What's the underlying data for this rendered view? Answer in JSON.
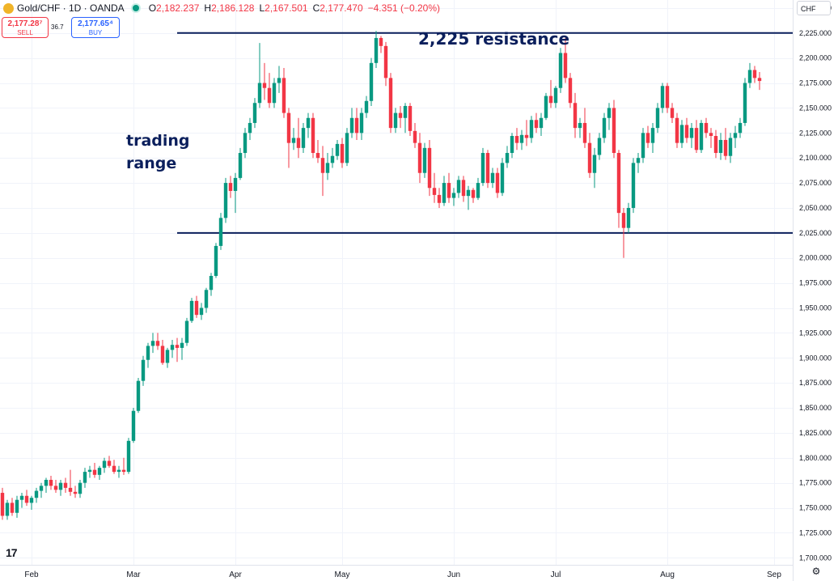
{
  "header": {
    "title": "Gold/CHF · 1D · OANDA",
    "o_label": "O",
    "o_value": "2,182.237",
    "h_label": "H",
    "h_value": "2,186.128",
    "l_label": "L",
    "l_value": "2,167.501",
    "c_label": "C",
    "c_value": "2,177.470",
    "change": "−4.351 (−0.20%)"
  },
  "trade": {
    "sell_price": "2,177.28⁷",
    "sell_label": "SELL",
    "spread": "36.7",
    "buy_price": "2,177.65⁴",
    "buy_label": "BUY"
  },
  "currency": "CHF",
  "annotations": {
    "resistance": "2,225 resistance",
    "range_line1": "trading",
    "range_line2": "range"
  },
  "logo": "17",
  "colors": {
    "up": "#089981",
    "down": "#f23645",
    "annotation": "#0b1f5c",
    "grid": "#f0f3fa"
  },
  "chart_data": {
    "type": "candlestick",
    "ylim": [
      1693,
      2258
    ],
    "yticks": [
      2250,
      2225,
      2200,
      2175,
      2150,
      2125,
      2100,
      2075,
      2050,
      2025,
      2000,
      1975,
      1950,
      1925,
      1900,
      1875,
      1850,
      1825,
      1800,
      1775,
      1750,
      1725,
      1700
    ],
    "ytick_labels": [
      "2,250.000",
      "2,225.000",
      "2,200.000",
      "2,175.000",
      "2,150.000",
      "2,125.000",
      "2,100.000",
      "2,075.000",
      "2,050.000",
      "2,025.000",
      "2,000.000",
      "1,975.000",
      "1,950.000",
      "1,925.000",
      "1,900.000",
      "1,875.000",
      "1,850.000",
      "1,825.000",
      "1,800.000",
      "1,775.000",
      "1,750.000",
      "1,725.000",
      "1,700.000"
    ],
    "months": [
      {
        "label": "Feb",
        "index": 6
      },
      {
        "label": "Mar",
        "index": 27
      },
      {
        "label": "Apr",
        "index": 48
      },
      {
        "label": "May",
        "index": 70
      },
      {
        "label": "Jun",
        "index": 93
      },
      {
        "label": "Jul",
        "index": 114
      },
      {
        "label": "Aug",
        "index": 137
      },
      {
        "label": "Sep",
        "index": 159
      }
    ],
    "hlines": [
      {
        "value": 2225,
        "start_index": 36
      },
      {
        "value": 2025,
        "start_index": 36
      }
    ],
    "candles": [
      [
        1765,
        1770,
        1738,
        1742
      ],
      [
        1742,
        1758,
        1738,
        1755
      ],
      [
        1755,
        1760,
        1742,
        1745
      ],
      [
        1745,
        1762,
        1740,
        1758
      ],
      [
        1758,
        1765,
        1750,
        1762
      ],
      [
        1762,
        1768,
        1752,
        1755
      ],
      [
        1755,
        1762,
        1748,
        1760
      ],
      [
        1760,
        1770,
        1755,
        1767
      ],
      [
        1767,
        1775,
        1760,
        1772
      ],
      [
        1772,
        1780,
        1765,
        1778
      ],
      [
        1778,
        1782,
        1768,
        1772
      ],
      [
        1772,
        1778,
        1765,
        1768
      ],
      [
        1768,
        1778,
        1762,
        1775
      ],
      [
        1775,
        1780,
        1765,
        1770
      ],
      [
        1770,
        1788,
        1762,
        1766
      ],
      [
        1766,
        1772,
        1760,
        1764
      ],
      [
        1764,
        1778,
        1760,
        1775
      ],
      [
        1775,
        1790,
        1770,
        1786
      ],
      [
        1786,
        1792,
        1780,
        1788
      ],
      [
        1788,
        1795,
        1780,
        1783
      ],
      [
        1783,
        1792,
        1778,
        1790
      ],
      [
        1790,
        1800,
        1785,
        1797
      ],
      [
        1797,
        1802,
        1790,
        1792
      ],
      [
        1792,
        1798,
        1784,
        1786
      ],
      [
        1786,
        1792,
        1780,
        1788
      ],
      [
        1788,
        1800,
        1783,
        1786
      ],
      [
        1786,
        1820,
        1784,
        1817
      ],
      [
        1817,
        1850,
        1815,
        1847
      ],
      [
        1847,
        1880,
        1845,
        1877
      ],
      [
        1877,
        1902,
        1872,
        1898
      ],
      [
        1898,
        1915,
        1890,
        1912
      ],
      [
        1912,
        1925,
        1905,
        1917
      ],
      [
        1917,
        1925,
        1908,
        1912
      ],
      [
        1912,
        1918,
        1893,
        1895
      ],
      [
        1895,
        1910,
        1890,
        1908
      ],
      [
        1908,
        1918,
        1900,
        1913
      ],
      [
        1913,
        1920,
        1896,
        1910
      ],
      [
        1910,
        1920,
        1898,
        1915
      ],
      [
        1915,
        1940,
        1912,
        1937
      ],
      [
        1937,
        1960,
        1935,
        1957
      ],
      [
        1957,
        1962,
        1940,
        1943
      ],
      [
        1943,
        1955,
        1938,
        1950
      ],
      [
        1950,
        1970,
        1945,
        1968
      ],
      [
        1968,
        1985,
        1962,
        1982
      ],
      [
        1982,
        2015,
        1980,
        2012
      ],
      [
        2012,
        2045,
        2008,
        2040
      ],
      [
        2040,
        2080,
        2035,
        2075
      ],
      [
        2075,
        2082,
        2060,
        2067
      ],
      [
        2067,
        2085,
        2045,
        2080
      ],
      [
        2080,
        2110,
        2078,
        2105
      ],
      [
        2105,
        2130,
        2100,
        2125
      ],
      [
        2125,
        2140,
        2118,
        2135
      ],
      [
        2135,
        2160,
        2130,
        2155
      ],
      [
        2155,
        2215,
        2150,
        2175
      ],
      [
        2175,
        2195,
        2158,
        2170
      ],
      [
        2170,
        2185,
        2150,
        2155
      ],
      [
        2155,
        2180,
        2150,
        2175
      ],
      [
        2175,
        2192,
        2165,
        2180
      ],
      [
        2180,
        2190,
        2140,
        2145
      ],
      [
        2145,
        2150,
        2090,
        2115
      ],
      [
        2115,
        2130,
        2108,
        2120
      ],
      [
        2120,
        2140,
        2100,
        2110
      ],
      [
        2110,
        2135,
        2105,
        2130
      ],
      [
        2130,
        2145,
        2120,
        2140
      ],
      [
        2140,
        2145,
        2100,
        2105
      ],
      [
        2105,
        2118,
        2095,
        2100
      ],
      [
        2100,
        2112,
        2062,
        2085
      ],
      [
        2085,
        2105,
        2078,
        2095
      ],
      [
        2095,
        2110,
        2090,
        2102
      ],
      [
        2102,
        2118,
        2098,
        2114
      ],
      [
        2114,
        2120,
        2090,
        2095
      ],
      [
        2095,
        2130,
        2092,
        2125
      ],
      [
        2125,
        2150,
        2120,
        2140
      ],
      [
        2140,
        2150,
        2118,
        2125
      ],
      [
        2125,
        2150,
        2118,
        2145
      ],
      [
        2145,
        2162,
        2140,
        2157
      ],
      [
        2157,
        2200,
        2152,
        2195
      ],
      [
        2195,
        2227,
        2190,
        2220
      ],
      [
        2220,
        2222,
        2205,
        2212
      ],
      [
        2212,
        2216,
        2172,
        2180
      ],
      [
        2180,
        2185,
        2125,
        2130
      ],
      [
        2130,
        2150,
        2125,
        2145
      ],
      [
        2145,
        2152,
        2130,
        2140
      ],
      [
        2140,
        2155,
        2125,
        2152
      ],
      [
        2152,
        2155,
        2122,
        2127
      ],
      [
        2127,
        2135,
        2110,
        2115
      ],
      [
        2115,
        2125,
        2075,
        2085
      ],
      [
        2085,
        2115,
        2080,
        2110
      ],
      [
        2110,
        2118,
        2062,
        2070
      ],
      [
        2070,
        2085,
        2055,
        2063
      ],
      [
        2063,
        2070,
        2050,
        2055
      ],
      [
        2055,
        2082,
        2052,
        2075
      ],
      [
        2075,
        2085,
        2055,
        2060
      ],
      [
        2060,
        2070,
        2052,
        2065
      ],
      [
        2065,
        2082,
        2060,
        2078
      ],
      [
        2078,
        2082,
        2056,
        2062
      ],
      [
        2062,
        2072,
        2048,
        2068
      ],
      [
        2068,
        2070,
        2055,
        2060
      ],
      [
        2060,
        2080,
        2058,
        2075
      ],
      [
        2075,
        2110,
        2072,
        2105
      ],
      [
        2105,
        2108,
        2070,
        2075
      ],
      [
        2075,
        2090,
        2070,
        2085
      ],
      [
        2085,
        2090,
        2060,
        2065
      ],
      [
        2065,
        2100,
        2062,
        2095
      ],
      [
        2095,
        2112,
        2090,
        2105
      ],
      [
        2105,
        2125,
        2100,
        2122
      ],
      [
        2122,
        2130,
        2108,
        2115
      ],
      [
        2115,
        2128,
        2108,
        2123
      ],
      [
        2123,
        2138,
        2112,
        2120
      ],
      [
        2120,
        2142,
        2115,
        2138
      ],
      [
        2138,
        2145,
        2125,
        2130
      ],
      [
        2130,
        2145,
        2122,
        2140
      ],
      [
        2140,
        2165,
        2138,
        2162
      ],
      [
        2162,
        2178,
        2150,
        2155
      ],
      [
        2155,
        2172,
        2150,
        2170
      ],
      [
        2170,
        2210,
        2165,
        2205
      ],
      [
        2205,
        2220,
        2175,
        2180
      ],
      [
        2180,
        2185,
        2150,
        2155
      ],
      [
        2155,
        2165,
        2120,
        2130
      ],
      [
        2130,
        2140,
        2120,
        2135
      ],
      [
        2135,
        2150,
        2110,
        2115
      ],
      [
        2115,
        2125,
        2080,
        2085
      ],
      [
        2085,
        2110,
        2070,
        2103
      ],
      [
        2103,
        2125,
        2098,
        2120
      ],
      [
        2120,
        2145,
        2115,
        2140
      ],
      [
        2140,
        2155,
        2128,
        2150
      ],
      [
        2150,
        2158,
        2100,
        2105
      ],
      [
        2105,
        2108,
        2030,
        2045
      ],
      [
        2045,
        2050,
        2000,
        2030
      ],
      [
        2030,
        2055,
        2025,
        2050
      ],
      [
        2050,
        2100,
        2045,
        2095
      ],
      [
        2095,
        2105,
        2085,
        2100
      ],
      [
        2100,
        2130,
        2095,
        2125
      ],
      [
        2125,
        2132,
        2110,
        2115
      ],
      [
        2115,
        2135,
        2105,
        2130
      ],
      [
        2130,
        2155,
        2125,
        2150
      ],
      [
        2150,
        2175,
        2145,
        2172
      ],
      [
        2172,
        2175,
        2145,
        2150
      ],
      [
        2150,
        2155,
        2135,
        2140
      ],
      [
        2140,
        2145,
        2110,
        2115
      ],
      [
        2115,
        2138,
        2110,
        2133
      ],
      [
        2133,
        2140,
        2115,
        2120
      ],
      [
        2120,
        2135,
        2110,
        2130
      ],
      [
        2130,
        2138,
        2105,
        2108
      ],
      [
        2108,
        2138,
        2105,
        2135
      ],
      [
        2135,
        2140,
        2120,
        2125
      ],
      [
        2125,
        2130,
        2110,
        2122
      ],
      [
        2122,
        2128,
        2100,
        2105
      ],
      [
        2105,
        2125,
        2098,
        2118
      ],
      [
        2118,
        2130,
        2098,
        2102
      ],
      [
        2102,
        2125,
        2095,
        2120
      ],
      [
        2120,
        2132,
        2110,
        2125
      ],
      [
        2125,
        2140,
        2120,
        2135
      ],
      [
        2135,
        2180,
        2132,
        2175
      ],
      [
        2175,
        2195,
        2170,
        2188
      ],
      [
        2188,
        2192,
        2175,
        2180
      ],
      [
        2180,
        2186,
        2168,
        2177
      ]
    ]
  }
}
